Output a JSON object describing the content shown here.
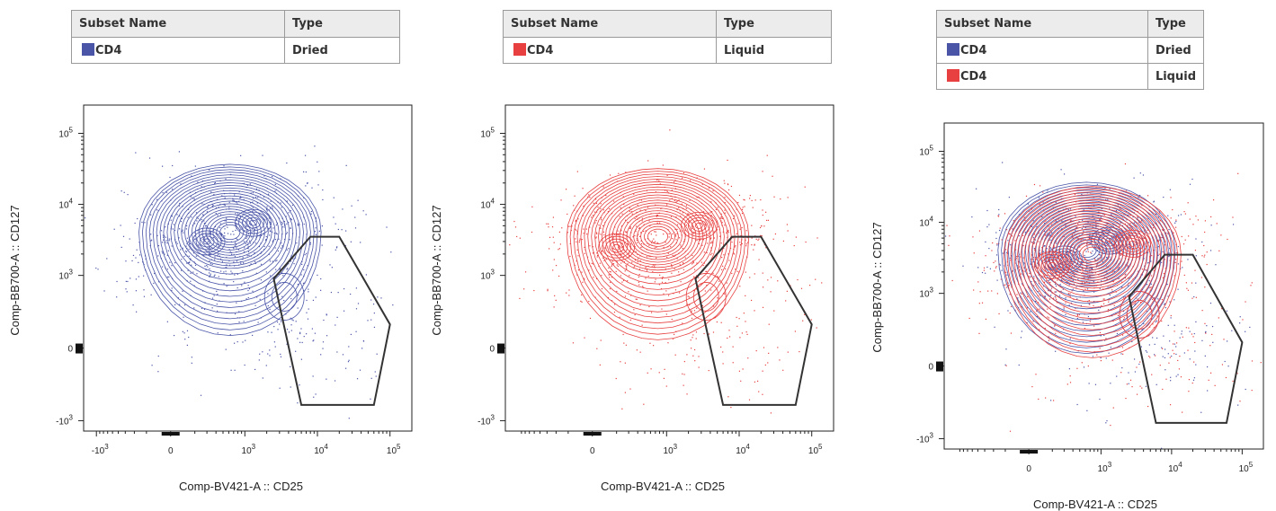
{
  "colors": {
    "dried": "#4a55a8",
    "liquid": "#e84040",
    "gate": "#333333"
  },
  "panels": [
    {
      "legend": {
        "headers": [
          "Subset Name",
          "Type"
        ],
        "rows": [
          {
            "swatch": "dried",
            "name": "CD4",
            "type": "Dried"
          }
        ]
      },
      "xlabel": "Comp-BV421-A :: CD25",
      "ylabel": "Comp-BB700-A :: CD127"
    },
    {
      "legend": {
        "headers": [
          "Subset Name",
          "Type"
        ],
        "rows": [
          {
            "swatch": "liquid",
            "name": "CD4",
            "type": "Liquid"
          }
        ]
      },
      "xlabel": "Comp-BV421-A :: CD25",
      "ylabel": "Comp-BB700-A :: CD127"
    },
    {
      "legend": {
        "headers": [
          "Subset Name",
          "Type"
        ],
        "rows": [
          {
            "swatch": "dried",
            "name": "CD4",
            "type": "Dried"
          },
          {
            "swatch": "liquid",
            "name": "CD4",
            "type": "Liquid"
          }
        ]
      },
      "xlabel": "Comp-BV421-A :: CD25",
      "ylabel": "Comp-BB700-A :: CD127"
    }
  ],
  "chart_data": [
    {
      "type": "scatter",
      "subtype": "flow-cytometry contour plot with dots",
      "xlabel": "Comp-BV421-A :: CD25",
      "ylabel": "Comp-BB700-A :: CD127",
      "x_ticks": [
        "-10^3",
        "0",
        "10^3",
        "10^4",
        "10^5"
      ],
      "y_ticks": [
        "-10^3",
        "0",
        "10^3",
        "10^4",
        "10^5"
      ],
      "scale": "biexponential",
      "series": [
        {
          "name": "Dried",
          "color": "dried",
          "peaks": [
            {
              "x": 300,
              "y": 3000
            },
            {
              "x": 1300,
              "y": 5500
            }
          ]
        }
      ],
      "gate_vertices": [
        [
          2500,
          900
        ],
        [
          8000,
          3500
        ],
        [
          20000,
          3500
        ],
        [
          100000,
          200
        ],
        [
          60000,
          -600
        ],
        [
          6000,
          -600
        ]
      ]
    },
    {
      "type": "scatter",
      "subtype": "flow-cytometry contour plot with dots",
      "xlabel": "Comp-BV421-A :: CD25",
      "ylabel": "Comp-BB700-A :: CD127",
      "x_ticks": [
        "0",
        "10^3",
        "10^4",
        "10^5"
      ],
      "y_ticks": [
        "-10^3",
        "0",
        "10^3",
        "10^4",
        "10^5"
      ],
      "scale": "biexponential",
      "series": [
        {
          "name": "Liquid",
          "color": "liquid",
          "peaks": [
            {
              "x": 200,
              "y": 2500
            },
            {
              "x": 2800,
              "y": 5000
            }
          ]
        }
      ],
      "gate_vertices": [
        [
          2500,
          900
        ],
        [
          8000,
          3500
        ],
        [
          20000,
          3500
        ],
        [
          100000,
          200
        ],
        [
          60000,
          -600
        ],
        [
          6000,
          -600
        ]
      ]
    },
    {
      "type": "scatter",
      "subtype": "flow-cytometry contour overlay",
      "xlabel": "Comp-BV421-A :: CD25",
      "ylabel": "Comp-BB700-A :: CD127",
      "x_ticks": [
        "0",
        "10^3",
        "10^4",
        "10^5"
      ],
      "y_ticks": [
        "-10^3",
        "0",
        "10^3",
        "10^4",
        "10^5"
      ],
      "scale": "biexponential",
      "series": [
        {
          "name": "Dried",
          "color": "dried",
          "peaks": [
            {
              "x": 300,
              "y": 3000
            },
            {
              "x": 1300,
              "y": 5500
            }
          ]
        },
        {
          "name": "Liquid",
          "color": "liquid",
          "peaks": [
            {
              "x": 200,
              "y": 2500
            },
            {
              "x": 2800,
              "y": 5000
            }
          ]
        }
      ],
      "gate_vertices": [
        [
          2500,
          900
        ],
        [
          8000,
          3500
        ],
        [
          20000,
          3500
        ],
        [
          100000,
          200
        ],
        [
          60000,
          -600
        ],
        [
          6000,
          -600
        ]
      ]
    }
  ]
}
